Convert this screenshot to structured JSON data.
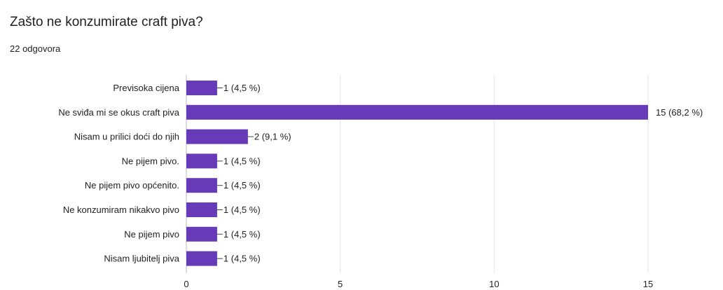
{
  "header": {
    "question": "Zašto ne konzumirate craft piva?",
    "responses": "22 odgovora"
  },
  "colors": {
    "bar": "#673ab7",
    "grid": "#e6e6e6",
    "axis": "#bdbdbd",
    "text": "#222222"
  },
  "chart_data": {
    "type": "bar",
    "orientation": "horizontal",
    "categories": [
      "Previsoka cijena",
      "Ne sviđa mi se okus craft piva",
      "Nisam u prilici doći do njih",
      "Ne pijem pivo.",
      "Ne pijem pivo općenito.",
      "Ne konzumiram nikakvo pivo",
      "Ne pijem pivo",
      "Nisam ljubitelj piva"
    ],
    "values": [
      1,
      15,
      2,
      1,
      1,
      1,
      1,
      1
    ],
    "data_labels": [
      "1 (4,5 %)",
      "15 (68,2 %)",
      "2 (9,1 %)",
      "1 (4,5 %)",
      "1 (4,5 %)",
      "1 (4,5 %)",
      "1 (4,5 %)",
      "1 (4,5 %)"
    ],
    "xlim": [
      0,
      15
    ],
    "xticks": [
      0,
      5,
      10,
      15
    ],
    "grid": true,
    "legend": "none"
  }
}
